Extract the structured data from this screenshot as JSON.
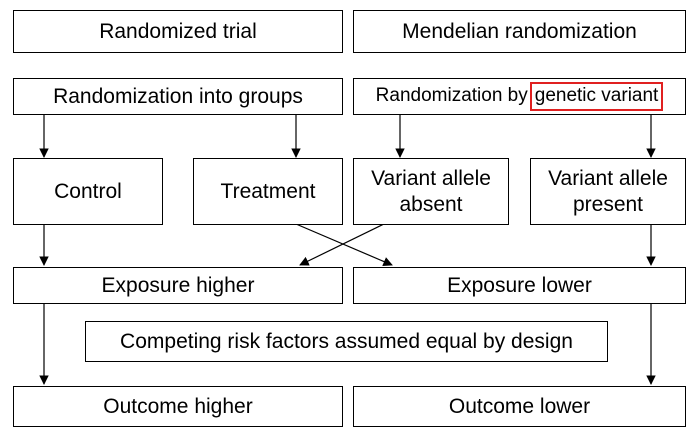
{
  "diagram": {
    "header_left": "Randomized trial",
    "header_right": "Mendelian randomization",
    "rand_groups": "Randomization into groups",
    "rand_variant_prefix": "Randomization by",
    "rand_variant_highlight": "genetic variant",
    "control": "Control",
    "treatment": "Treatment",
    "variant_absent": "Variant allele absent",
    "variant_present": "Variant allele present",
    "exposure_higher": "Exposure higher",
    "exposure_lower": "Exposure lower",
    "competing": "Competing risk factors assumed equal by design",
    "outcome_higher": "Outcome higher",
    "outcome_lower": "Outcome lower"
  },
  "colors": {
    "line": "#000000",
    "highlight": "#e02020"
  }
}
